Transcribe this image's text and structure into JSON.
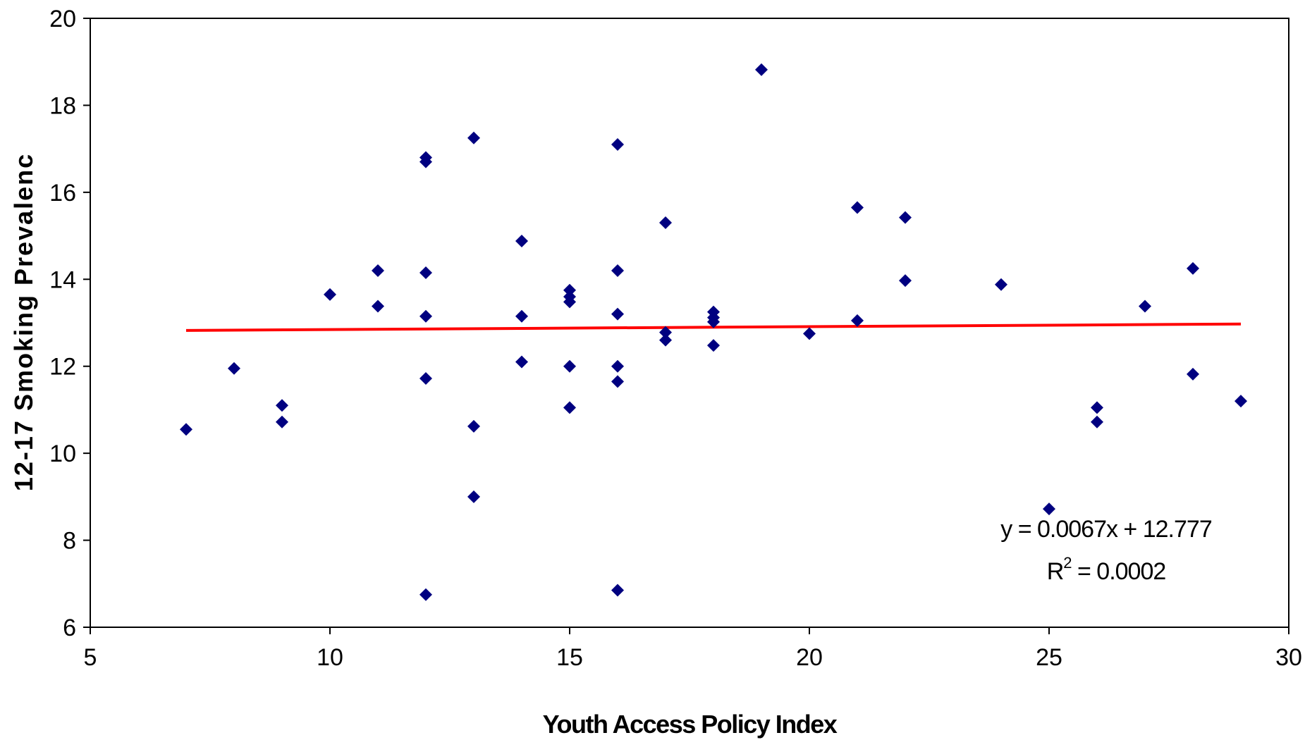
{
  "chart_data": {
    "type": "scatter",
    "xlabel": "Youth Access Policy Index",
    "ylabel": "12-17 Smoking Prevalenc",
    "xlim": [
      5,
      30
    ],
    "ylim": [
      6,
      20
    ],
    "xticks": [
      "5",
      "10",
      "15",
      "20",
      "25",
      "30"
    ],
    "yticks": [
      "6",
      "8",
      "10",
      "12",
      "14",
      "16",
      "18",
      "20"
    ],
    "grid": false,
    "series": [
      {
        "marker": "diamond",
        "color": "#000080",
        "points": [
          [
            7,
            10.55
          ],
          [
            8,
            11.95
          ],
          [
            9,
            11.1
          ],
          [
            9,
            10.72
          ],
          [
            10,
            13.65
          ],
          [
            11,
            14.2
          ],
          [
            11,
            13.38
          ],
          [
            12,
            16.8
          ],
          [
            12,
            16.7
          ],
          [
            12,
            14.15
          ],
          [
            12,
            13.15
          ],
          [
            12,
            11.72
          ],
          [
            12,
            6.75
          ],
          [
            13,
            17.25
          ],
          [
            13,
            10.62
          ],
          [
            13,
            9.0
          ],
          [
            14,
            14.88
          ],
          [
            14,
            13.15
          ],
          [
            14,
            12.1
          ],
          [
            15,
            13.75
          ],
          [
            15,
            13.6
          ],
          [
            15,
            13.48
          ],
          [
            15,
            12.0
          ],
          [
            15,
            11.05
          ],
          [
            16,
            17.1
          ],
          [
            16,
            14.2
          ],
          [
            16,
            13.2
          ],
          [
            16,
            12.0
          ],
          [
            16,
            11.65
          ],
          [
            16,
            6.85
          ],
          [
            17,
            15.3
          ],
          [
            17,
            12.78
          ],
          [
            17,
            12.6
          ],
          [
            18,
            13.25
          ],
          [
            18,
            13.12
          ],
          [
            18,
            13.02
          ],
          [
            18,
            12.48
          ],
          [
            19,
            18.82
          ],
          [
            20,
            12.75
          ],
          [
            21,
            15.65
          ],
          [
            21,
            13.05
          ],
          [
            22,
            15.42
          ],
          [
            22,
            13.97
          ],
          [
            24,
            13.88
          ],
          [
            25,
            8.72
          ],
          [
            26,
            11.05
          ],
          [
            26,
            10.72
          ],
          [
            27,
            13.38
          ],
          [
            28,
            14.25
          ],
          [
            28,
            11.82
          ],
          [
            29,
            11.2
          ]
        ]
      }
    ],
    "trendline": {
      "color": "#ff0000",
      "slope": 0.0067,
      "intercept": 12.777,
      "x_range": [
        7,
        29
      ],
      "equation": "y = 0.0067x + 12.777",
      "r2_prefix": "R",
      "r2_superscript": "2",
      "r2_suffix": " = 0.0002"
    }
  }
}
